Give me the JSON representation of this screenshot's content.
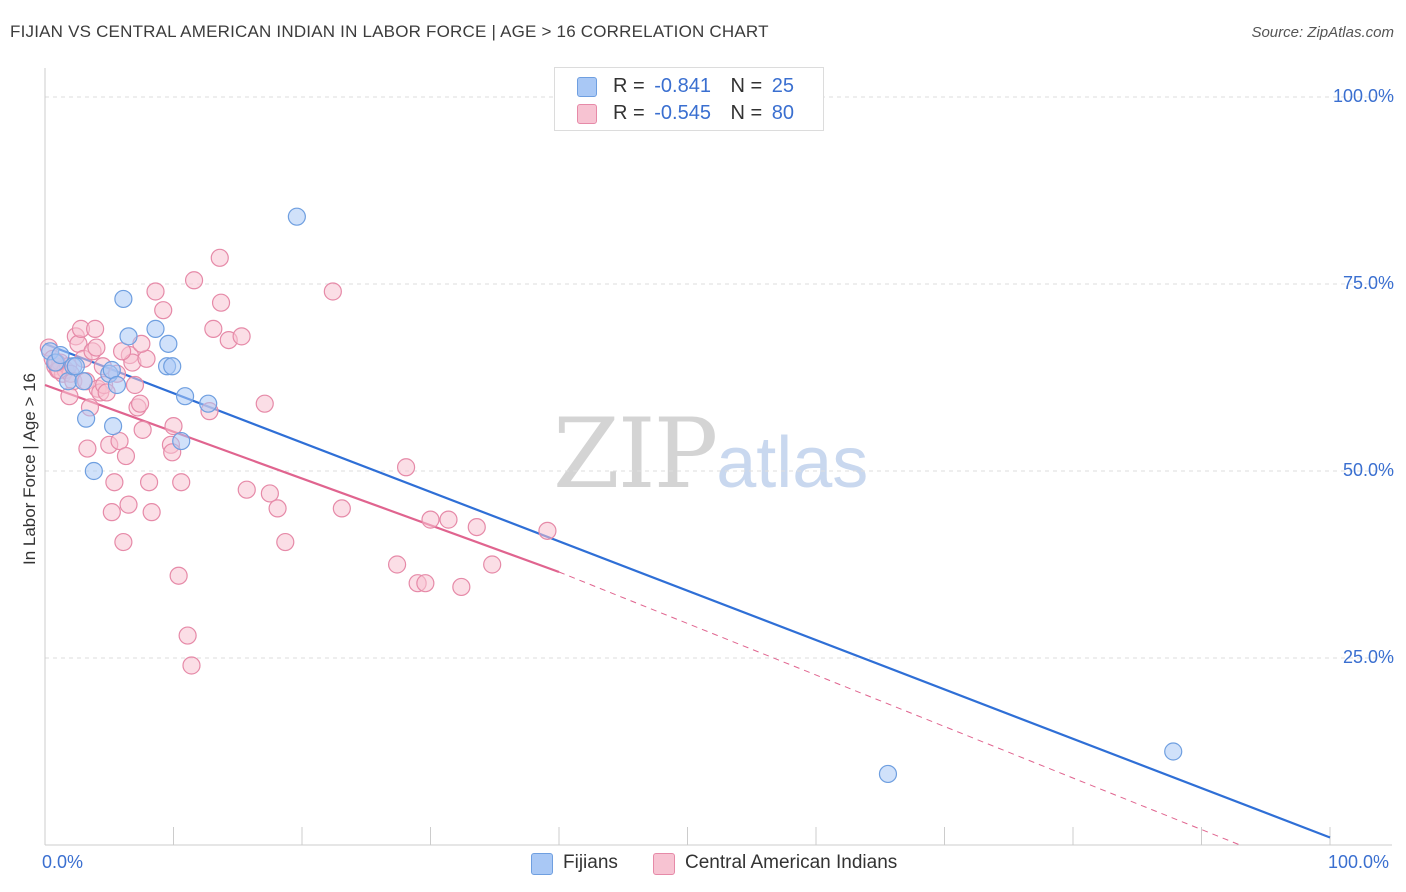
{
  "title": "FIJIAN VS CENTRAL AMERICAN INDIAN IN LABOR FORCE | AGE > 16 CORRELATION CHART",
  "source": "Source: ZipAtlas.com",
  "watermark": {
    "zip": "ZIP",
    "atlas": "atlas"
  },
  "legend": {
    "rows": [
      {
        "r_label": "R =",
        "r_value": "-0.841",
        "n_label": "N =",
        "n_value": "25",
        "color": "#a9c8f5",
        "border": "#6f9fe0"
      },
      {
        "r_label": "R =",
        "r_value": "-0.545",
        "n_label": "N =",
        "n_value": "80",
        "color": "#f7c3d2",
        "border": "#e68aa8"
      }
    ]
  },
  "bottom_legend": [
    {
      "label": "Fijians",
      "color": "#a9c8f5",
      "border": "#6f9fe0"
    },
    {
      "label": "Central American Indians",
      "color": "#f7c3d2",
      "border": "#e68aa8"
    }
  ],
  "chart_data": {
    "type": "scatter",
    "title": "FIJIAN VS CENTRAL AMERICAN INDIAN IN LABOR FORCE | AGE > 16 CORRELATION CHART",
    "xlabel": "",
    "ylabel": "In Labor Force | Age > 16",
    "xlim": [
      0,
      100
    ],
    "ylim": [
      0,
      100
    ],
    "x_tick_labels": [
      "0.0%",
      "100.0%"
    ],
    "y_ticks": [
      25,
      50,
      75,
      100
    ],
    "y_tick_labels": [
      "25.0%",
      "50.0%",
      "75.0%",
      "100.0%"
    ],
    "grid": true,
    "series": [
      {
        "name": "Fijians",
        "color": "#6f9fe0",
        "fill": "#a9c8f5",
        "points": [
          [
            0.4,
            66
          ],
          [
            0.8,
            64.5
          ],
          [
            1.2,
            65.5
          ],
          [
            1.8,
            62
          ],
          [
            2.2,
            64
          ],
          [
            3.0,
            62
          ],
          [
            3.2,
            57
          ],
          [
            3.8,
            50
          ],
          [
            5.0,
            63
          ],
          [
            5.2,
            63.5
          ],
          [
            5.3,
            56
          ],
          [
            5.6,
            61.5
          ],
          [
            6.1,
            73
          ],
          [
            6.5,
            68
          ],
          [
            8.6,
            69
          ],
          [
            9.5,
            64
          ],
          [
            9.6,
            67
          ],
          [
            9.9,
            64
          ],
          [
            10.6,
            54
          ],
          [
            10.9,
            60
          ],
          [
            12.7,
            59
          ],
          [
            19.6,
            84
          ],
          [
            65.6,
            9.5
          ],
          [
            87.8,
            12.5
          ],
          [
            2.4,
            64
          ]
        ],
        "trend": {
          "x": [
            0,
            100
          ],
          "y": [
            67,
            1
          ],
          "dashed_from": null
        }
      },
      {
        "name": "Central American Indians",
        "color": "#e68aa8",
        "fill": "#f7c3d2",
        "points": [
          [
            0.3,
            66.5
          ],
          [
            0.6,
            65
          ],
          [
            0.8,
            64
          ],
          [
            1.0,
            63.5
          ],
          [
            1.2,
            64.5
          ],
          [
            1.4,
            63
          ],
          [
            1.6,
            63.5
          ],
          [
            1.8,
            64
          ],
          [
            2.0,
            63
          ],
          [
            2.2,
            62
          ],
          [
            1.9,
            60
          ],
          [
            2.4,
            68
          ],
          [
            2.6,
            67
          ],
          [
            2.8,
            69
          ],
          [
            3.0,
            65
          ],
          [
            3.2,
            62
          ],
          [
            3.3,
            53
          ],
          [
            3.5,
            58.5
          ],
          [
            3.7,
            66
          ],
          [
            3.9,
            69
          ],
          [
            4.1,
            61
          ],
          [
            4.3,
            60.5
          ],
          [
            4.5,
            64
          ],
          [
            4.6,
            61.5
          ],
          [
            4.8,
            60.5
          ],
          [
            5.0,
            53.5
          ],
          [
            5.2,
            44.5
          ],
          [
            5.4,
            48.5
          ],
          [
            5.6,
            63
          ],
          [
            5.8,
            54
          ],
          [
            6.1,
            40.5
          ],
          [
            6.3,
            52
          ],
          [
            6.5,
            45.5
          ],
          [
            6.6,
            65.5
          ],
          [
            6.8,
            64.5
          ],
          [
            7.0,
            61.5
          ],
          [
            7.2,
            58.5
          ],
          [
            7.4,
            59
          ],
          [
            7.6,
            55.5
          ],
          [
            7.9,
            65
          ],
          [
            8.1,
            48.5
          ],
          [
            8.3,
            44.5
          ],
          [
            8.6,
            74
          ],
          [
            9.2,
            71.5
          ],
          [
            9.8,
            53.5
          ],
          [
            9.9,
            52.5
          ],
          [
            10.4,
            36
          ],
          [
            10.6,
            48.5
          ],
          [
            11.1,
            28
          ],
          [
            11.4,
            24
          ],
          [
            11.6,
            75.5
          ],
          [
            12.8,
            58
          ],
          [
            13.1,
            69
          ],
          [
            13.6,
            78.5
          ],
          [
            13.7,
            72.5
          ],
          [
            14.3,
            67.5
          ],
          [
            15.3,
            68
          ],
          [
            15.7,
            47.5
          ],
          [
            17.1,
            59
          ],
          [
            17.5,
            47
          ],
          [
            18.1,
            45
          ],
          [
            18.7,
            40.5
          ],
          [
            22.4,
            74
          ],
          [
            23.1,
            45
          ],
          [
            27.4,
            37.5
          ],
          [
            28.1,
            50.5
          ],
          [
            29.0,
            35
          ],
          [
            29.6,
            35
          ],
          [
            30.0,
            43.5
          ],
          [
            31.4,
            43.5
          ],
          [
            32.4,
            34.5
          ],
          [
            33.6,
            42.5
          ],
          [
            34.8,
            37.5
          ],
          [
            39.1,
            42
          ],
          [
            1.1,
            63.5
          ],
          [
            0.9,
            64.5
          ],
          [
            6.0,
            66
          ],
          [
            4.0,
            66.5
          ],
          [
            7.5,
            67
          ],
          [
            10.0,
            56
          ]
        ],
        "trend": {
          "x": [
            0,
            40,
            93
          ],
          "y": [
            61.5,
            36.5,
            0
          ],
          "dashed_from": 40
        }
      }
    ]
  }
}
